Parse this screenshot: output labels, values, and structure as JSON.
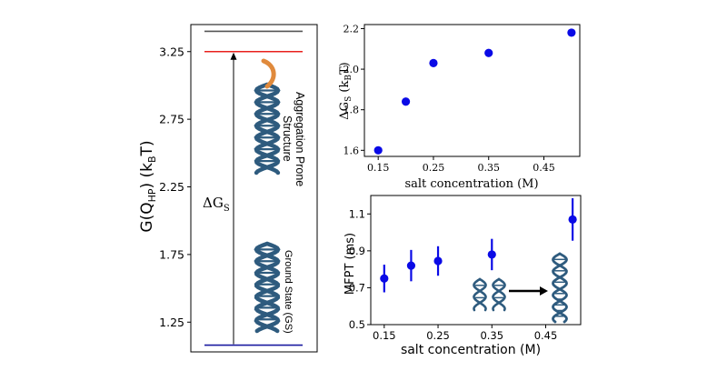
{
  "chart_data": [
    {
      "type": "diagram",
      "ylabel_main": "G(Q",
      "ylabel_sub": "HP",
      "ylabel_end": ") (k",
      "ylabel_sub2": "B",
      "ylabel_close": "T)",
      "yticks": [
        "3.25",
        "2.75",
        "2.25",
        "1.75",
        "1.25"
      ],
      "ytick_values": [
        3.25,
        2.75,
        2.25,
        1.75,
        1.25
      ],
      "ylim": [
        1.03,
        3.45
      ],
      "levels": [
        {
          "name": "top",
          "value": 3.4,
          "color": "#555555"
        },
        {
          "name": "aggregation",
          "value": 3.25,
          "color": "#e8201c"
        },
        {
          "name": "ground",
          "value": 1.08,
          "color": "#1a1aa0"
        }
      ],
      "delta_label": "ΔG",
      "delta_sub": "S",
      "upper_label_line1": "Aggregation Prone",
      "upper_label_line2": "Structure",
      "lower_label": "Ground State (GS)",
      "colors": {
        "dna": "#2e5b7e",
        "tail": "#e08a3c"
      }
    },
    {
      "type": "scatter",
      "x": [
        0.15,
        0.2,
        0.25,
        0.35,
        0.5
      ],
      "y": [
        1.6,
        1.84,
        2.03,
        2.08,
        2.18
      ],
      "xticks": [
        "0.15",
        "0.25",
        "0.35",
        "0.45"
      ],
      "xtick_values": [
        0.15,
        0.25,
        0.35,
        0.45
      ],
      "yticks": [
        "1.6",
        "1.8",
        "2.0",
        "2.2"
      ],
      "ytick_values": [
        1.6,
        1.8,
        2.0,
        2.2
      ],
      "xlim": [
        0.125,
        0.515
      ],
      "ylim": [
        1.57,
        2.22
      ],
      "xlabel": "salt concentration (M)",
      "ylabel_main": "ΔG",
      "ylabel_sub": "S",
      "ylabel_end": " (k",
      "ylabel_sub2": "B",
      "ylabel_close": "T)",
      "color": "#0a0ae6"
    },
    {
      "type": "scatter",
      "x": [
        0.15,
        0.2,
        0.25,
        0.35,
        0.5
      ],
      "y": [
        0.75,
        0.82,
        0.845,
        0.88,
        1.07
      ],
      "yerr": [
        0.075,
        0.085,
        0.08,
        0.085,
        0.115
      ],
      "xticks": [
        "0.15",
        "0.25",
        "0.35",
        "0.45"
      ],
      "xtick_values": [
        0.15,
        0.25,
        0.35,
        0.45
      ],
      "yticks": [
        "0.5",
        "0.7",
        "0.9",
        "1.1"
      ],
      "ytick_values": [
        0.5,
        0.7,
        0.9,
        1.1
      ],
      "xlim": [
        0.125,
        0.515
      ],
      "ylim": [
        0.5,
        1.2
      ],
      "xlabel": "salt concentration (M)",
      "ylabel": "MFPT (ms)",
      "color": "#0a0ae6",
      "colors": {
        "dna": "#2e5b7e"
      }
    }
  ]
}
